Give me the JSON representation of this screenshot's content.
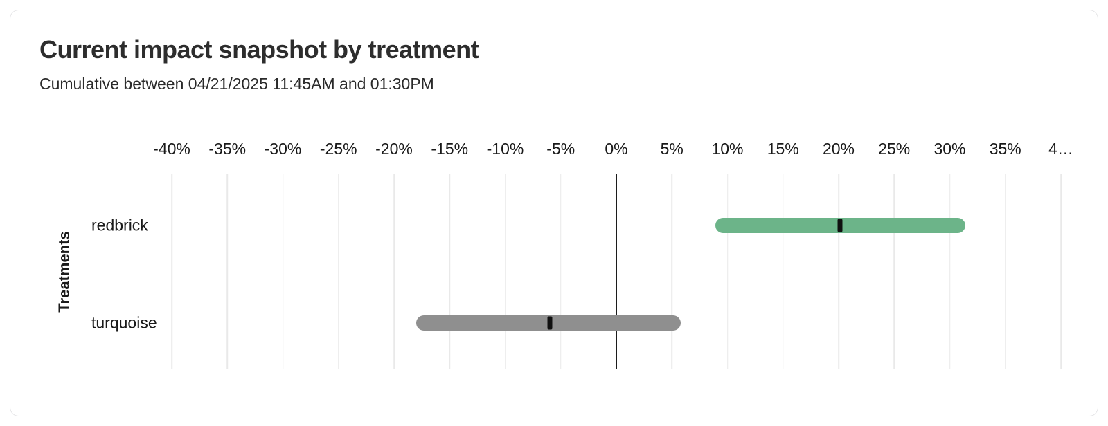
{
  "card": {
    "title": "Current impact snapshot by treatment",
    "subtitle": "Cumulative between 04/21/2025 11:45AM and 01:30PM"
  },
  "chart_data": {
    "type": "bar",
    "orientation": "horizontal",
    "title": "Current impact snapshot by treatment",
    "subtitle": "Cumulative between 04/21/2025 11:45AM and 01:30PM",
    "xlabel": "",
    "ylabel": "Treatments",
    "unit": "percent",
    "xlim": [
      -40,
      40
    ],
    "x_tick_values": [
      -40,
      -35,
      -30,
      -25,
      -20,
      -15,
      -10,
      -5,
      0,
      5,
      10,
      15,
      20,
      25,
      30,
      35,
      40
    ],
    "x_tick_labels": [
      "-40%",
      "-35%",
      "-30%",
      "-25%",
      "-20%",
      "-15%",
      "-10%",
      "-5%",
      "0%",
      "5%",
      "10%",
      "15%",
      "20%",
      "25%",
      "30%",
      "35%",
      "4…"
    ],
    "grid": true,
    "zero_line": true,
    "legend": "none",
    "categories": [
      "redbrick",
      "turquoise"
    ],
    "series": [
      {
        "name": "redbrick",
        "ci_low": 8.9,
        "ci_high": 31.4,
        "point": 20.1,
        "color": "#6CB489"
      },
      {
        "name": "turquoise",
        "ci_low": -18.0,
        "ci_high": 5.8,
        "point": -6.0,
        "color": "#8F8F8F"
      }
    ],
    "colors": {
      "gridline": "#e9e9e9",
      "zero_line": "#1c1c1c",
      "point_marker": "#101010",
      "title_text": "#2d2d2d",
      "text": "#1a1a1a",
      "card_border": "#e5e5e7"
    }
  }
}
